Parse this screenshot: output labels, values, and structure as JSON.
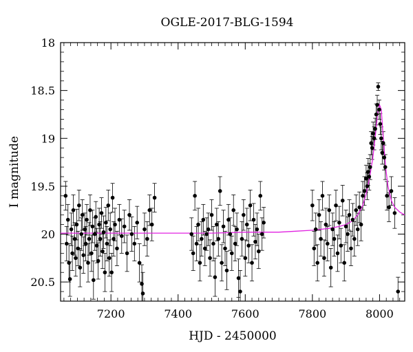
{
  "chart_data": {
    "type": "scatter",
    "title": "OGLE-2017-BLG-1594",
    "xlabel": "HJD - 2450000",
    "ylabel": "I magnitude",
    "xlim": [
      7050,
      8075
    ],
    "ylim": [
      20.7,
      18.0
    ],
    "y_inverted": true,
    "xticks": [
      7200,
      7400,
      7600,
      7800,
      8000
    ],
    "yticks": [
      18,
      18.5,
      19,
      19.5,
      20,
      20.5
    ],
    "ytick_labels": [
      "18",
      "18.5",
      "19",
      "19.5",
      "20",
      "20.5"
    ],
    "grid": false,
    "legend": "none",
    "colors": {
      "points": "#000000",
      "model": "#e020e0"
    },
    "series": [
      {
        "type": "scatter_with_errorbars",
        "points": [
          [
            7065,
            19.6,
            0.15
          ],
          [
            7068,
            20.1,
            0.18
          ],
          [
            7072,
            19.85,
            0.16
          ],
          [
            7075,
            20.3,
            0.2
          ],
          [
            7078,
            20.47,
            0.18
          ],
          [
            7082,
            19.95,
            0.17
          ],
          [
            7085,
            20.2,
            0.18
          ],
          [
            7088,
            19.75,
            0.16
          ],
          [
            7092,
            20.05,
            0.17
          ],
          [
            7095,
            20.25,
            0.19
          ],
          [
            7098,
            19.9,
            0.16
          ],
          [
            7102,
            20.15,
            0.18
          ],
          [
            7105,
            19.7,
            0.16
          ],
          [
            7108,
            20.35,
            0.2
          ],
          [
            7112,
            20.0,
            0.17
          ],
          [
            7115,
            19.8,
            0.16
          ],
          [
            7118,
            20.22,
            0.19
          ],
          [
            7122,
            19.95,
            0.17
          ],
          [
            7125,
            20.1,
            0.18
          ],
          [
            7128,
            19.85,
            0.16
          ],
          [
            7132,
            20.3,
            0.2
          ],
          [
            7135,
            20.05,
            0.17
          ],
          [
            7138,
            19.75,
            0.16
          ],
          [
            7142,
            20.2,
            0.19
          ],
          [
            7145,
            19.92,
            0.17
          ],
          [
            7148,
            20.48,
            0.2
          ],
          [
            7152,
            20.0,
            0.17
          ],
          [
            7155,
            19.82,
            0.16
          ],
          [
            7158,
            20.12,
            0.18
          ],
          [
            7162,
            20.28,
            0.19
          ],
          [
            7165,
            19.9,
            0.17
          ],
          [
            7168,
            20.05,
            0.18
          ],
          [
            7172,
            19.78,
            0.16
          ],
          [
            7175,
            20.18,
            0.18
          ],
          [
            7178,
            19.98,
            0.17
          ],
          [
            7182,
            20.4,
            0.2
          ],
          [
            7185,
            19.88,
            0.16
          ],
          [
            7188,
            20.1,
            0.18
          ],
          [
            7192,
            19.7,
            0.16
          ],
          [
            7195,
            20.25,
            0.19
          ],
          [
            7198,
            19.95,
            0.17
          ],
          [
            7202,
            20.4,
            0.2
          ],
          [
            7205,
            19.62,
            0.15
          ],
          [
            7208,
            20.05,
            0.18
          ],
          [
            7212,
            19.9,
            0.17
          ],
          [
            7218,
            20.15,
            0.18
          ],
          [
            7225,
            19.85,
            0.16
          ],
          [
            7232,
            20.02,
            0.18
          ],
          [
            7240,
            19.92,
            0.17
          ],
          [
            7248,
            20.2,
            0.19
          ],
          [
            7255,
            19.8,
            0.16
          ],
          [
            7262,
            20.0,
            0.18
          ],
          [
            7270,
            20.1,
            0.18
          ],
          [
            7278,
            19.88,
            0.17
          ],
          [
            7285,
            20.3,
            0.2
          ],
          [
            7292,
            20.52,
            0.2
          ],
          [
            7295,
            20.62,
            0.22
          ],
          [
            7300,
            19.95,
            0.17
          ],
          [
            7308,
            20.05,
            0.18
          ],
          [
            7315,
            19.75,
            0.16
          ],
          [
            7322,
            19.9,
            0.17
          ],
          [
            7330,
            19.62,
            0.15
          ],
          [
            7440,
            20.0,
            0.17
          ],
          [
            7445,
            20.2,
            0.18
          ],
          [
            7450,
            19.6,
            0.15
          ],
          [
            7455,
            20.1,
            0.18
          ],
          [
            7460,
            19.9,
            0.17
          ],
          [
            7465,
            20.3,
            0.19
          ],
          [
            7470,
            20.05,
            0.18
          ],
          [
            7475,
            19.85,
            0.16
          ],
          [
            7480,
            20.15,
            0.18
          ],
          [
            7485,
            20.0,
            0.17
          ],
          [
            7490,
            19.95,
            0.17
          ],
          [
            7495,
            20.25,
            0.19
          ],
          [
            7500,
            19.8,
            0.16
          ],
          [
            7505,
            20.1,
            0.18
          ],
          [
            7510,
            20.45,
            0.2
          ],
          [
            7515,
            19.9,
            0.17
          ],
          [
            7520,
            20.05,
            0.18
          ],
          [
            7525,
            19.55,
            0.15
          ],
          [
            7530,
            20.3,
            0.19
          ],
          [
            7535,
            19.92,
            0.17
          ],
          [
            7540,
            20.15,
            0.18
          ],
          [
            7545,
            20.38,
            0.2
          ],
          [
            7550,
            19.85,
            0.16
          ],
          [
            7555,
            20.0,
            0.17
          ],
          [
            7560,
            20.2,
            0.18
          ],
          [
            7565,
            19.75,
            0.16
          ],
          [
            7570,
            20.1,
            0.18
          ],
          [
            7575,
            19.95,
            0.17
          ],
          [
            7580,
            20.46,
            0.2
          ],
          [
            7585,
            20.6,
            0.22
          ],
          [
            7590,
            20.05,
            0.18
          ],
          [
            7595,
            19.8,
            0.16
          ],
          [
            7600,
            20.25,
            0.19
          ],
          [
            7605,
            19.9,
            0.17
          ],
          [
            7610,
            20.12,
            0.18
          ],
          [
            7615,
            19.7,
            0.16
          ],
          [
            7620,
            20.3,
            0.19
          ],
          [
            7625,
            19.85,
            0.17
          ],
          [
            7630,
            20.08,
            0.18
          ],
          [
            7635,
            19.95,
            0.17
          ],
          [
            7640,
            20.18,
            0.18
          ],
          [
            7645,
            19.6,
            0.15
          ],
          [
            7650,
            20.0,
            0.17
          ],
          [
            7655,
            19.88,
            0.16
          ],
          [
            7800,
            19.7,
            0.16
          ],
          [
            7805,
            20.15,
            0.18
          ],
          [
            7810,
            19.95,
            0.17
          ],
          [
            7815,
            20.3,
            0.19
          ],
          [
            7820,
            19.8,
            0.16
          ],
          [
            7825,
            20.05,
            0.18
          ],
          [
            7830,
            19.6,
            0.15
          ],
          [
            7835,
            20.25,
            0.19
          ],
          [
            7840,
            19.9,
            0.17
          ],
          [
            7845,
            20.1,
            0.18
          ],
          [
            7850,
            19.75,
            0.16
          ],
          [
            7855,
            20.35,
            0.2
          ],
          [
            7860,
            19.95,
            0.17
          ],
          [
            7865,
            20.05,
            0.18
          ],
          [
            7870,
            19.7,
            0.16
          ],
          [
            7875,
            20.2,
            0.19
          ],
          [
            7880,
            19.88,
            0.17
          ],
          [
            7885,
            20.12,
            0.18
          ],
          [
            7890,
            19.65,
            0.16
          ],
          [
            7895,
            20.3,
            0.19
          ],
          [
            7900,
            19.92,
            0.17
          ],
          [
            7905,
            20.0,
            0.18
          ],
          [
            7910,
            19.8,
            0.16
          ],
          [
            7915,
            20.15,
            0.18
          ],
          [
            7920,
            19.85,
            0.17
          ],
          [
            7925,
            20.05,
            0.18
          ],
          [
            7930,
            19.75,
            0.16
          ],
          [
            7935,
            19.95,
            0.17
          ],
          [
            7940,
            19.72,
            0.16
          ],
          [
            7945,
            19.9,
            0.17
          ],
          [
            7950,
            19.6,
            0.15
          ],
          [
            7955,
            19.55,
            0.15
          ],
          [
            7960,
            19.42,
            0.14
          ],
          [
            7963,
            19.5,
            0.14
          ],
          [
            7966,
            19.35,
            0.14
          ],
          [
            7969,
            19.4,
            0.14
          ],
          [
            7972,
            19.3,
            0.13
          ],
          [
            7975,
            19.05,
            0.12
          ],
          [
            7978,
            19.1,
            0.12
          ],
          [
            7981,
            18.95,
            0.12
          ],
          [
            7984,
            19.0,
            0.12
          ],
          [
            7987,
            18.9,
            0.11
          ],
          [
            7990,
            18.75,
            0.11
          ],
          [
            7993,
            18.65,
            0.1
          ],
          [
            7996,
            18.46,
            0.04
          ],
          [
            7999,
            18.7,
            0.1
          ],
          [
            8002,
            18.85,
            0.11
          ],
          [
            8005,
            19.0,
            0.12
          ],
          [
            8008,
            19.15,
            0.12
          ],
          [
            8011,
            19.05,
            0.12
          ],
          [
            8014,
            19.2,
            0.13
          ],
          [
            8017,
            19.3,
            0.13
          ],
          [
            8022,
            19.6,
            0.15
          ],
          [
            8028,
            19.72,
            0.15
          ],
          [
            8035,
            19.55,
            0.15
          ],
          [
            8045,
            19.78,
            0.16
          ],
          [
            8055,
            20.6,
            0.15
          ]
        ]
      },
      {
        "type": "model_line",
        "x": [
          7050,
          7100,
          7200,
          7300,
          7400,
          7500,
          7600,
          7700,
          7750,
          7800,
          7850,
          7880,
          7900,
          7920,
          7935,
          7950,
          7960,
          7970,
          7980,
          7988,
          7995,
          8000,
          8005,
          8010,
          8018,
          8025,
          8035,
          8045,
          8060,
          8075
        ],
        "y": [
          19.99,
          19.99,
          19.99,
          19.99,
          19.99,
          19.99,
          19.98,
          19.98,
          19.97,
          19.96,
          19.94,
          19.92,
          19.9,
          19.86,
          19.8,
          19.7,
          19.58,
          19.42,
          19.2,
          18.95,
          18.72,
          18.65,
          18.7,
          18.95,
          19.3,
          19.5,
          19.65,
          19.72,
          19.77,
          19.8
        ]
      }
    ]
  }
}
